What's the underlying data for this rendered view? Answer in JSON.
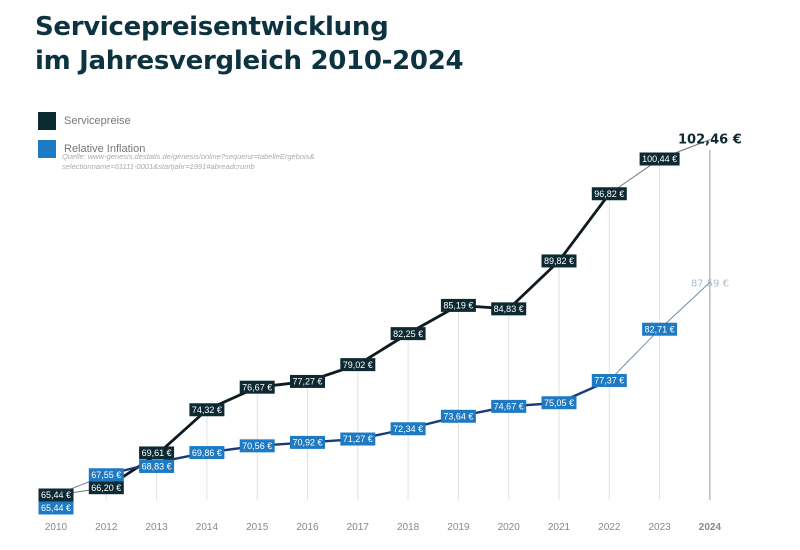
{
  "title_line1": "Servicepreisentwicklung",
  "title_line2": "im Jahresvergleich 2010-2024",
  "legend": [
    {
      "label": "Servicepreise",
      "color": "#0d2a33"
    },
    {
      "label": "Relative Inflation",
      "color": "#1f7ac4"
    }
  ],
  "source_line1": "Quelle: www-genesis.destatis.de/genesis/online?sequenz=tabelleErgebnis&",
  "source_line2": "selectionname=61111-0001&startjahr=1991#abreadcrumb",
  "chart_data": {
    "type": "line",
    "categories": [
      "2010",
      "2012",
      "2013",
      "2014",
      "2015",
      "2016",
      "2017",
      "2018",
      "2019",
      "2020",
      "2021",
      "2022",
      "2023",
      "2024"
    ],
    "series": [
      {
        "name": "Servicepreise",
        "color": "#0d2a33",
        "values": [
          65.44,
          66.2,
          69.61,
          74.32,
          76.67,
          77.27,
          79.02,
          82.25,
          85.19,
          84.83,
          89.82,
          96.82,
          100.44,
          102.46
        ],
        "labels": [
          "65,44 €",
          "66,20 €",
          "69,61 €",
          "74,32 €",
          "76,67 €",
          "77,27 €",
          "79,02 €",
          "82,25 €",
          "85,19 €",
          "84,83 €",
          "89,82 €",
          "96,82 €",
          "100,44 €",
          "102,46 €"
        ]
      },
      {
        "name": "Relative Inflation",
        "color": "#1f7ac4",
        "values": [
          65.44,
          67.55,
          68.83,
          69.86,
          70.56,
          70.92,
          71.27,
          72.34,
          73.64,
          74.67,
          75.05,
          77.37,
          82.71,
          87.59
        ],
        "labels": [
          "65,44 €",
          "67,55 €",
          "68,83 €",
          "69,86 €",
          "70,56 €",
          "70,92 €",
          "71,27 €",
          "72,34 €",
          "73,64 €",
          "74,67 €",
          "75,05 €",
          "77,37 €",
          "82,71 €",
          "87,59 €"
        ]
      }
    ],
    "highlight_category": "2024",
    "grid": "vertical"
  }
}
